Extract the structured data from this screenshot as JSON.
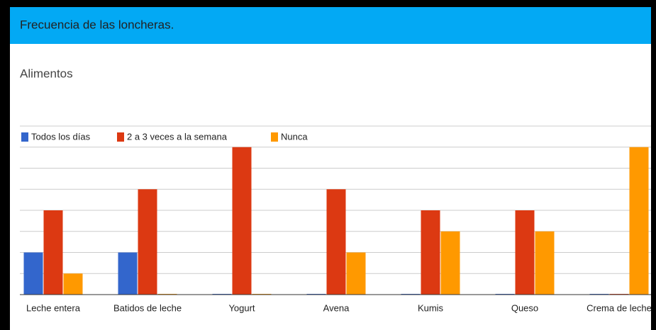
{
  "header": {
    "title": "Frecuencia de las loncheras."
  },
  "chart_data": {
    "type": "bar",
    "title": "Alimentos",
    "categories": [
      "Leche entera",
      "Batidos de leche",
      "Yogurt",
      "Avena",
      "Kumis",
      "Queso",
      "Crema de leche"
    ],
    "series": [
      {
        "name": "Todos los días",
        "color": "#3366cc",
        "values": [
          2,
          2,
          0,
          0,
          0,
          0,
          0
        ]
      },
      {
        "name": "2 a 3 veces a la semana",
        "color": "#dc3912",
        "values": [
          4,
          5,
          7,
          5,
          4,
          4,
          0
        ]
      },
      {
        "name": "Nunca",
        "color": "#ff9900",
        "values": [
          1,
          0,
          0,
          2,
          3,
          3,
          7
        ]
      }
    ],
    "ylim": [
      0,
      8
    ],
    "yticks": [
      0,
      1,
      2,
      3,
      4,
      5,
      6,
      7,
      8
    ],
    "grid": true,
    "legend": "top"
  }
}
